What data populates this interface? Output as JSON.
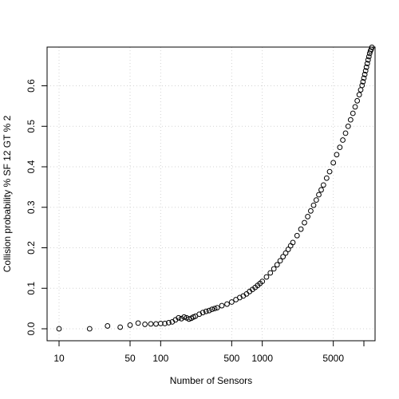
{
  "chart_data": {
    "type": "scatter",
    "title": "",
    "xlabel": "Number of Sensors",
    "ylabel": "Collision probability % SF 12  GT % 2",
    "x_scale": "log",
    "xlim": [
      10,
      10000
    ],
    "ylim": [
      0,
      0.67
    ],
    "x_ticks": [
      10,
      50,
      100,
      500,
      1000,
      5000
    ],
    "x_tick_labels": [
      "10",
      "50",
      "100",
      "500",
      "1000",
      "5000"
    ],
    "x_extra_ticks": [
      10000
    ],
    "y_ticks": [
      0.0,
      0.1,
      0.2,
      0.3,
      0.4,
      0.5,
      0.6
    ],
    "y_tick_labels": [
      "0.0",
      "0.1",
      "0.2",
      "0.3",
      "0.4",
      "0.5",
      "0.6"
    ],
    "grid": true,
    "legend": "none",
    "marker": "open-circle",
    "marker_color": "#000000",
    "grid_color": "#d3d3d3",
    "points": [
      [
        10,
        0.0
      ],
      [
        20,
        0.0
      ],
      [
        30,
        0.007
      ],
      [
        40,
        0.004
      ],
      [
        50,
        0.009
      ],
      [
        60,
        0.014
      ],
      [
        70,
        0.011
      ],
      [
        80,
        0.012
      ],
      [
        90,
        0.012
      ],
      [
        100,
        0.013
      ],
      [
        110,
        0.013
      ],
      [
        120,
        0.015
      ],
      [
        130,
        0.017
      ],
      [
        140,
        0.022
      ],
      [
        150,
        0.027
      ],
      [
        160,
        0.025
      ],
      [
        170,
        0.029
      ],
      [
        180,
        0.027
      ],
      [
        190,
        0.024
      ],
      [
        200,
        0.026
      ],
      [
        210,
        0.029
      ],
      [
        220,
        0.031
      ],
      [
        240,
        0.036
      ],
      [
        260,
        0.04
      ],
      [
        280,
        0.043
      ],
      [
        300,
        0.045
      ],
      [
        320,
        0.048
      ],
      [
        340,
        0.05
      ],
      [
        360,
        0.052
      ],
      [
        400,
        0.057
      ],
      [
        450,
        0.061
      ],
      [
        500,
        0.066
      ],
      [
        550,
        0.072
      ],
      [
        600,
        0.077
      ],
      [
        650,
        0.081
      ],
      [
        700,
        0.086
      ],
      [
        750,
        0.092
      ],
      [
        800,
        0.097
      ],
      [
        850,
        0.102
      ],
      [
        900,
        0.107
      ],
      [
        950,
        0.112
      ],
      [
        1000,
        0.117
      ],
      [
        1100,
        0.128
      ],
      [
        1200,
        0.138
      ],
      [
        1300,
        0.148
      ],
      [
        1400,
        0.158
      ],
      [
        1500,
        0.168
      ],
      [
        1600,
        0.178
      ],
      [
        1700,
        0.187
      ],
      [
        1800,
        0.196
      ],
      [
        1900,
        0.205
      ],
      [
        2000,
        0.213
      ],
      [
        2200,
        0.23
      ],
      [
        2400,
        0.246
      ],
      [
        2600,
        0.262
      ],
      [
        2800,
        0.277
      ],
      [
        3000,
        0.291
      ],
      [
        3200,
        0.305
      ],
      [
        3400,
        0.318
      ],
      [
        3600,
        0.331
      ],
      [
        3800,
        0.343
      ],
      [
        4000,
        0.355
      ],
      [
        4300,
        0.372
      ],
      [
        4600,
        0.388
      ],
      [
        5000,
        0.41
      ],
      [
        5400,
        0.43
      ],
      [
        5800,
        0.448
      ],
      [
        6200,
        0.466
      ],
      [
        6600,
        0.483
      ],
      [
        7000,
        0.5
      ],
      [
        7400,
        0.516
      ],
      [
        7800,
        0.532
      ],
      [
        8200,
        0.548
      ],
      [
        8600,
        0.563
      ],
      [
        9000,
        0.578
      ],
      [
        9300,
        0.59
      ],
      [
        9600,
        0.601
      ],
      [
        9800,
        0.61
      ],
      [
        10000,
        0.619
      ],
      [
        10200,
        0.628
      ],
      [
        10400,
        0.637
      ],
      [
        10600,
        0.646
      ],
      [
        10800,
        0.655
      ],
      [
        11000,
        0.664
      ],
      [
        11200,
        0.672
      ],
      [
        11400,
        0.68
      ],
      [
        11600,
        0.686
      ],
      [
        11800,
        0.69
      ],
      [
        12000,
        0.695
      ]
    ]
  }
}
